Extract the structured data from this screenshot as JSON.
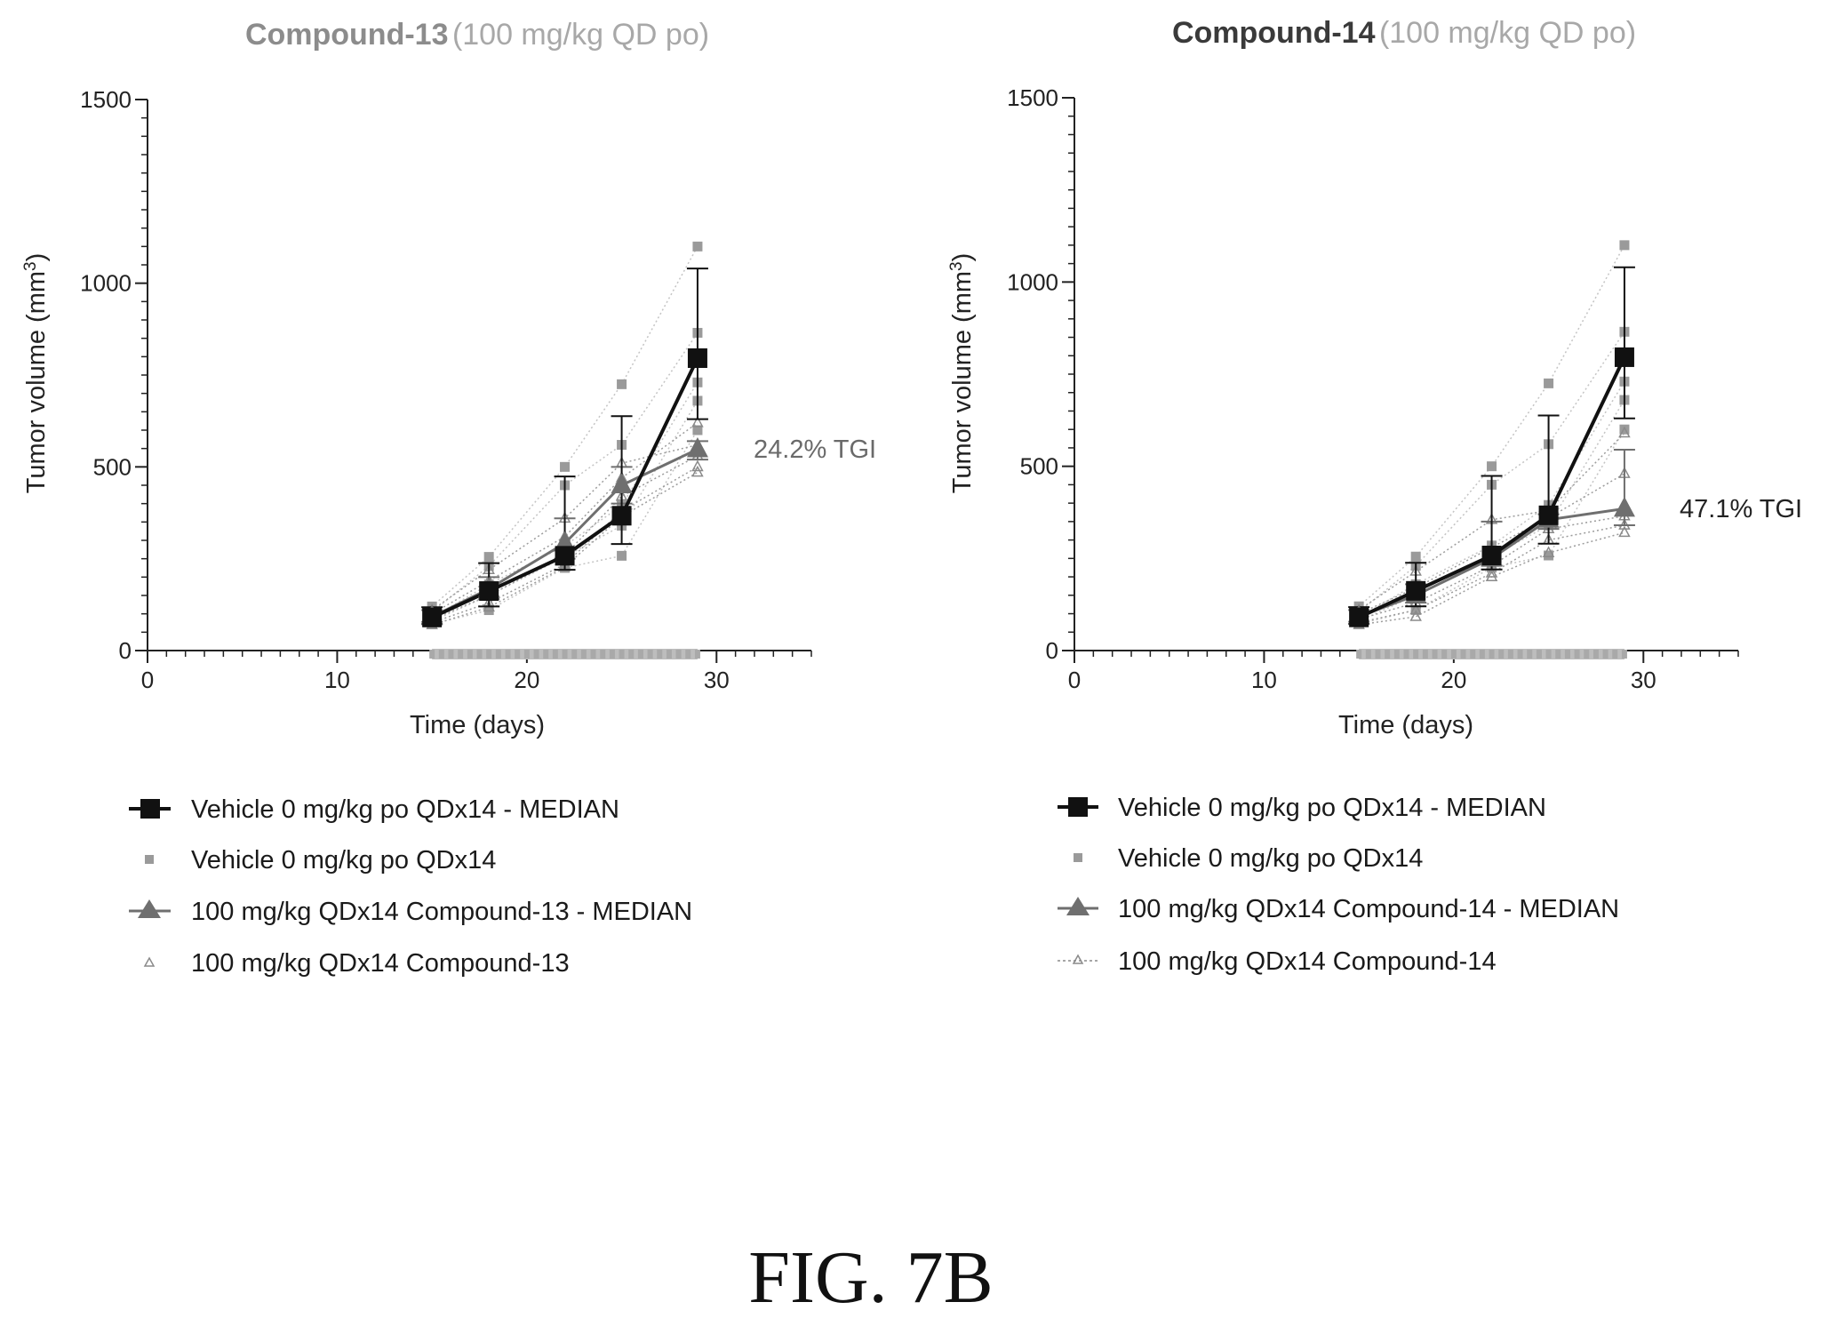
{
  "caption": "FIG. 7B",
  "colors": {
    "vehicle_median": "#111111",
    "vehicle_individual": "#9a9a9a",
    "compound_median": "#6f6f6f",
    "compound_individual": "#8a8a8a",
    "dosing_bar": "#bdbdbd",
    "title_compound13": "#8c8c8c",
    "title_compound14": "#3a3a3a",
    "title_dose": "#a8a8a8",
    "tgi_compound13": "#6a6a6a",
    "tgi_compound14": "#222222"
  },
  "chart_data": [
    {
      "type": "line",
      "title_main": "Compound-13",
      "title_dose": "(100 mg/kg QD po)",
      "xlabel": "Time (days)",
      "ylabel": "Tumor volume (mm",
      "ylabel_sup": "3",
      "ylabel_close": ")",
      "xlim": [
        0,
        35
      ],
      "ylim": [
        0,
        1500
      ],
      "xticks": [
        0,
        10,
        20,
        30
      ],
      "yticks": [
        0,
        500,
        1000,
        1500
      ],
      "annotation": "24.2% TGI",
      "dosing_period": [
        15,
        29
      ],
      "x": [
        15,
        18,
        22,
        25,
        29
      ],
      "series": [
        {
          "name": "Vehicle 0 mg/kg po QDx14 - MEDIAN",
          "role": "vehicle_median",
          "marker": "square",
          "values": [
            90,
            162,
            258,
            367,
            796
          ],
          "err_upper": [
            118,
            238,
            474,
            638,
            1040
          ],
          "err_lower": [
            72,
            120,
            220,
            290,
            630
          ]
        },
        {
          "name": "Vehicle 0 mg/kg po QDx14",
          "role": "vehicle_individual",
          "marker": "square",
          "animals": [
            [
              120,
              255,
              500,
              725,
              1100
            ],
            [
              105,
              230,
              450,
              560,
              865
            ],
            [
              90,
              180,
              285,
              395,
              730
            ],
            [
              80,
              150,
              255,
              340,
              680
            ],
            [
              72,
              110,
              225,
              258,
              600
            ]
          ]
        },
        {
          "name": "100 mg/kg QDx14 Compound-13 - MEDIAN",
          "role": "compound_median",
          "marker": "triangle",
          "values": [
            92,
            168,
            292,
            450,
            548
          ],
          "err_upper": [
            110,
            200,
            360,
            500,
            570
          ],
          "err_lower": [
            78,
            140,
            250,
            400,
            520
          ]
        },
        {
          "name": "100 mg/kg QDx14 Compound-13",
          "role": "compound_individual",
          "marker": "triangle",
          "animals": [
            [
              110,
              220,
              360,
              510,
              560
            ],
            [
              100,
              190,
              310,
              470,
              620
            ],
            [
              92,
              168,
              292,
              450,
              548
            ],
            [
              85,
              150,
              260,
              420,
              530
            ],
            [
              76,
              130,
              235,
              380,
              500
            ],
            [
              70,
              118,
              228,
              365,
              485
            ]
          ]
        }
      ]
    },
    {
      "type": "line",
      "title_main": "Compound-14",
      "title_dose": "(100 mg/kg QD po)",
      "xlabel": "Time (days)",
      "ylabel": "Tumor volume (mm",
      "ylabel_sup": "3",
      "ylabel_close": ")",
      "xlim": [
        0,
        35
      ],
      "ylim": [
        0,
        1500
      ],
      "xticks": [
        0,
        10,
        20,
        30
      ],
      "yticks": [
        0,
        500,
        1000,
        1500
      ],
      "annotation": "47.1% TGI",
      "dosing_period": [
        15,
        29
      ],
      "x": [
        15,
        18,
        22,
        25,
        29
      ],
      "series": [
        {
          "name": "Vehicle 0 mg/kg po QDx14 - MEDIAN",
          "role": "vehicle_median",
          "marker": "square",
          "values": [
            90,
            162,
            258,
            367,
            796
          ],
          "err_upper": [
            118,
            238,
            474,
            638,
            1040
          ],
          "err_lower": [
            72,
            120,
            220,
            290,
            630
          ]
        },
        {
          "name": "Vehicle 0 mg/kg po QDx14",
          "role": "vehicle_individual",
          "marker": "square",
          "animals": [
            [
              120,
              255,
              500,
              725,
              1100
            ],
            [
              105,
              230,
              450,
              560,
              865
            ],
            [
              90,
              180,
              285,
              395,
              730
            ],
            [
              80,
              150,
              255,
              340,
              680
            ],
            [
              72,
              110,
              225,
              258,
              600
            ]
          ]
        },
        {
          "name": "100 mg/kg QDx14 Compound-14 - MEDIAN",
          "role": "compound_median",
          "marker": "triangle",
          "values": [
            92,
            150,
            250,
            355,
            385
          ],
          "err_upper": [
            110,
            180,
            350,
            370,
            545
          ],
          "err_lower": [
            78,
            130,
            230,
            330,
            340
          ]
        },
        {
          "name": "100 mg/kg QDx14 Compound-14",
          "role": "compound_individual",
          "marker": "triangle",
          "animals": [
            [
              110,
              215,
              355,
              380,
              590
            ],
            [
              100,
              170,
              280,
              360,
              480
            ],
            [
              92,
              150,
              250,
              355,
              385
            ],
            [
              85,
              130,
              230,
              330,
              365
            ],
            [
              76,
              110,
              210,
              300,
              340
            ],
            [
              70,
              92,
              200,
              265,
              320
            ]
          ]
        }
      ]
    }
  ]
}
